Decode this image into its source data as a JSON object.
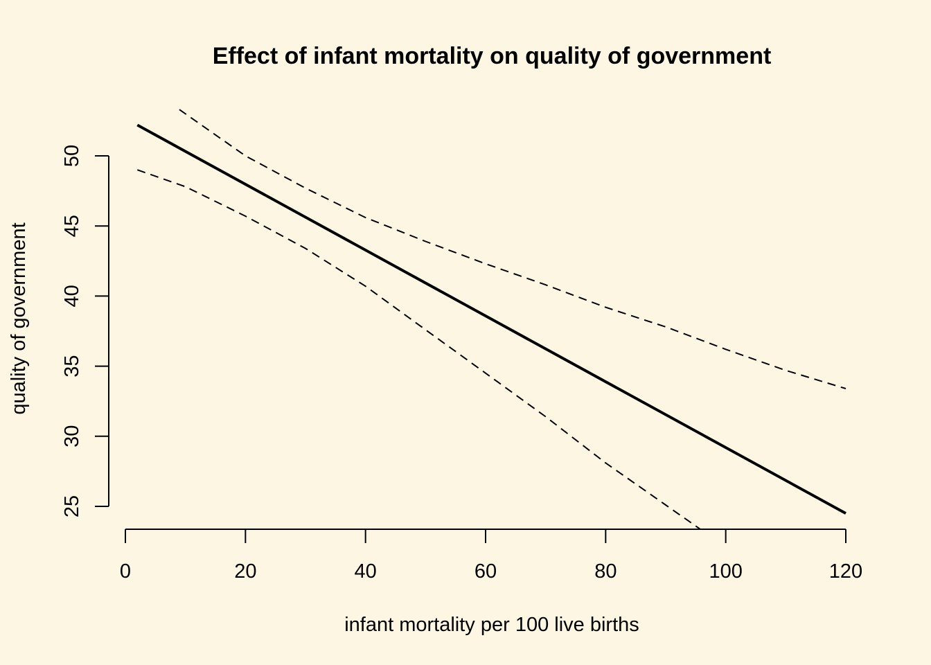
{
  "colors": {
    "background": "#fdf6e3",
    "line": "#000000"
  },
  "chart_data": {
    "type": "line",
    "title": "Effect of infant mortality on quality of government",
    "xlabel": "infant mortality per 100 live births",
    "ylabel": "quality of government",
    "xlim": [
      2,
      120
    ],
    "ylim": [
      24.5,
      52.2
    ],
    "x_ticks": [
      0,
      20,
      40,
      60,
      80,
      100,
      120
    ],
    "y_ticks": [
      25,
      30,
      35,
      40,
      45,
      50
    ],
    "grid": false,
    "legend": "none",
    "series": [
      {
        "style": "solid",
        "x": [
          2,
          120
        ],
        "y": [
          52.2,
          24.5
        ]
      },
      {
        "style": "dashed",
        "x": [
          9,
          20,
          30,
          40,
          50,
          60,
          70,
          80,
          90,
          100,
          110,
          120
        ],
        "y": [
          53.3,
          50.0,
          47.7,
          45.6,
          43.9,
          42.3,
          40.8,
          39.2,
          37.8,
          36.2,
          34.7,
          33.4
        ]
      },
      {
        "style": "dashed",
        "x": [
          2,
          10,
          20,
          30,
          40,
          50,
          60,
          70,
          80,
          90,
          96
        ],
        "y": [
          49.0,
          47.8,
          45.7,
          43.4,
          40.7,
          37.6,
          34.5,
          31.4,
          28.1,
          25.1,
          23.3
        ]
      }
    ]
  }
}
